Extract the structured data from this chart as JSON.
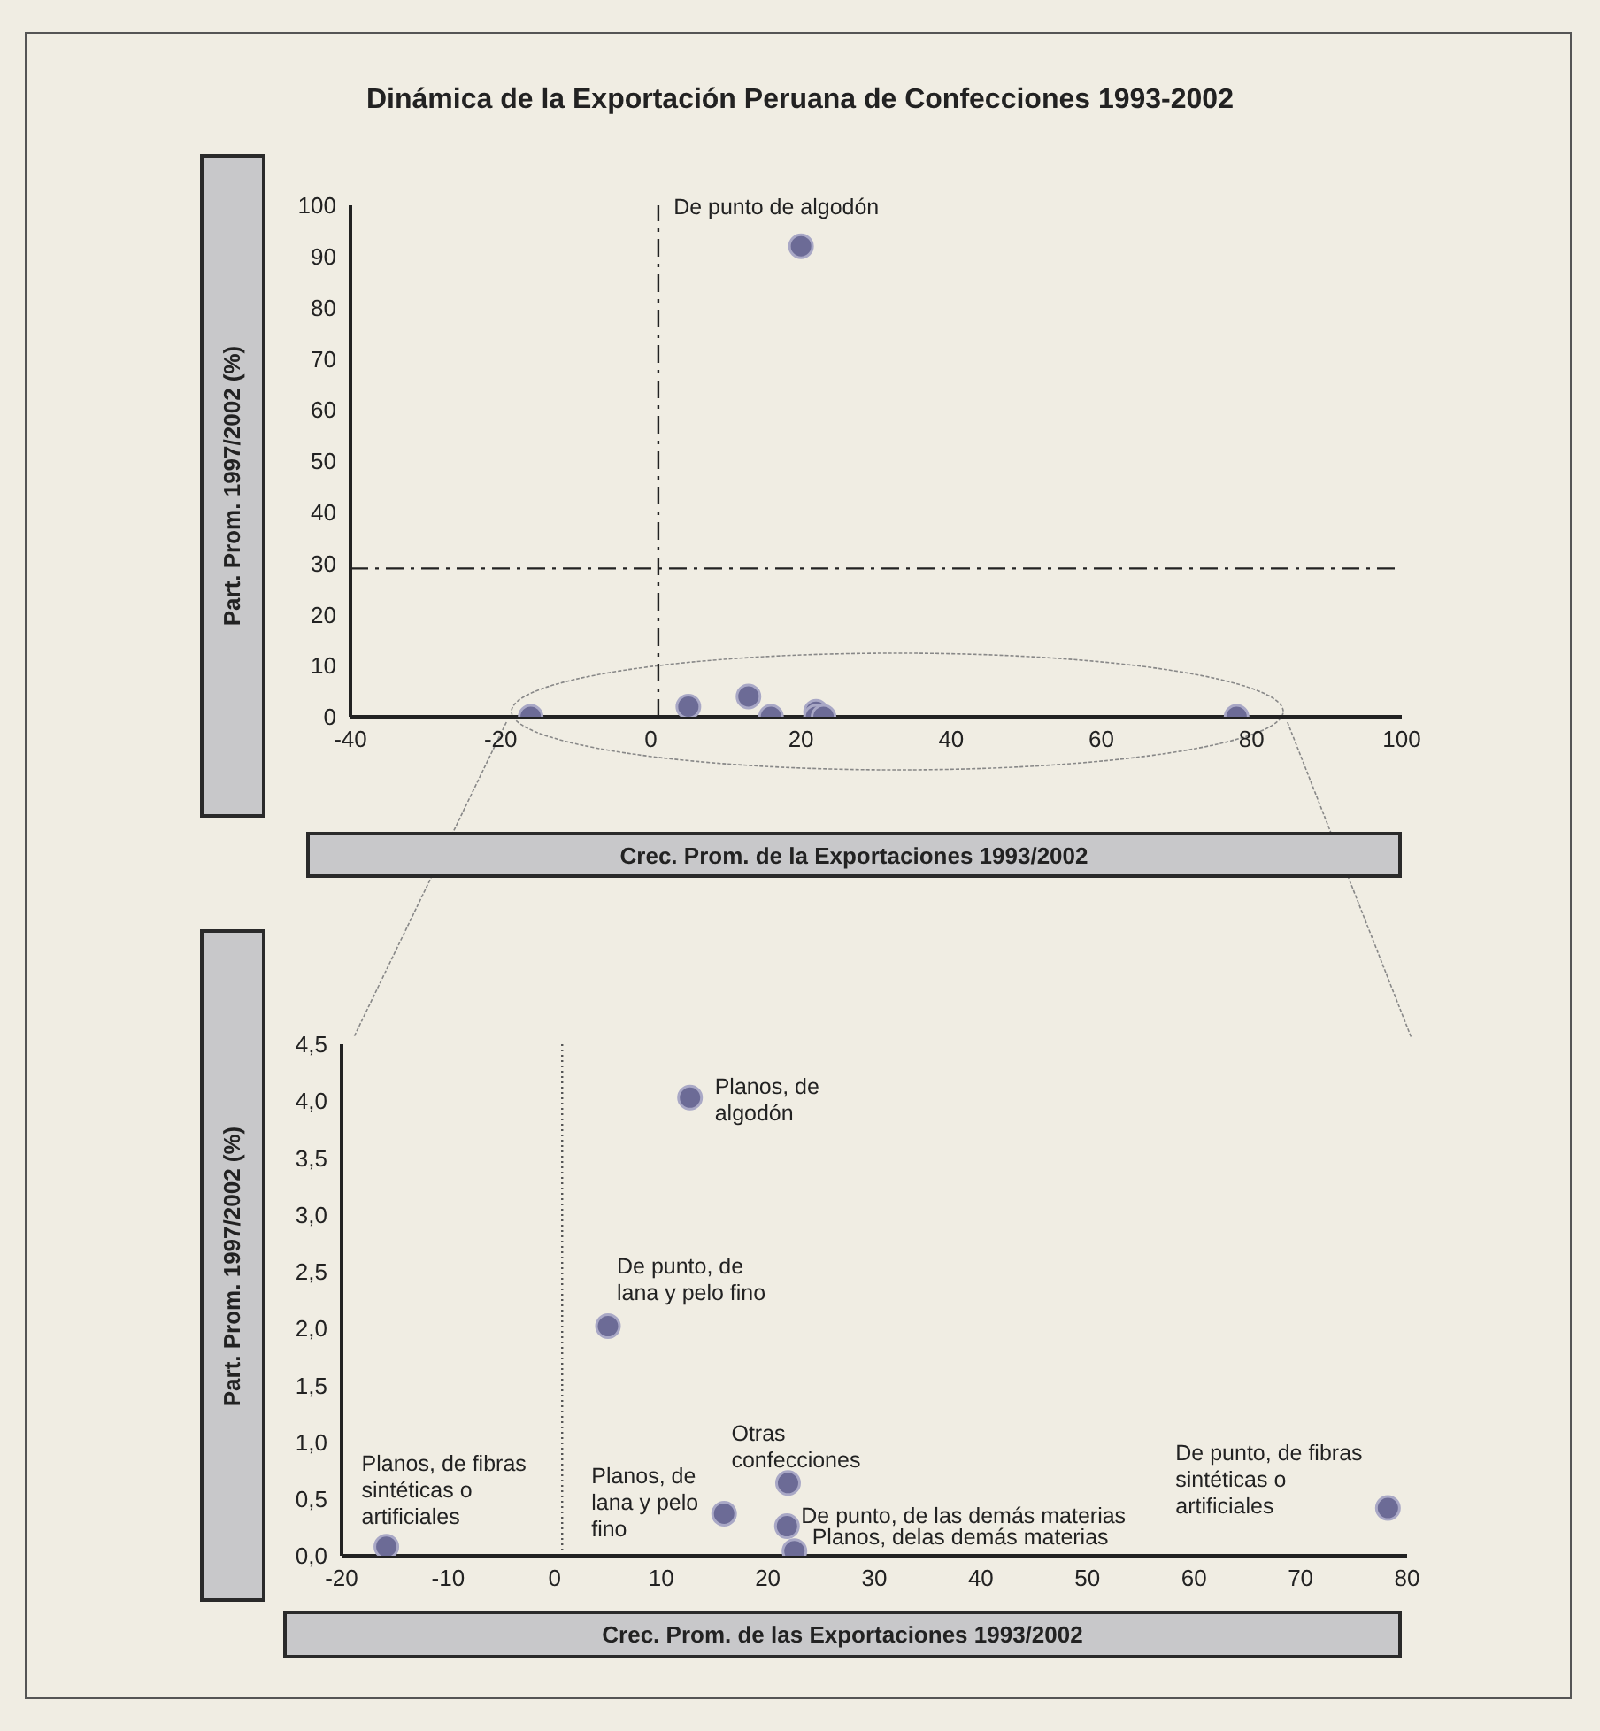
{
  "chart_data": [
    {
      "type": "scatter",
      "title": "Dinámica de la Exportación Peruana de Confecciones 1993-2002",
      "xlabel": "Crec. Prom. de la Exportaciones 1993/2002",
      "ylabel": "Part. Prom. 1997/2002 (%)",
      "x": [
        -16,
        5,
        13,
        16,
        22,
        22,
        23,
        78,
        20
      ],
      "values": [
        0,
        2,
        4,
        0,
        1,
        0,
        0,
        0,
        92
      ],
      "color": "#6c6b96",
      "marker": "circle",
      "grid": false,
      "xlim": [
        -40,
        100
      ],
      "xticks": [
        -40,
        -20,
        0,
        20,
        40,
        60,
        80,
        100
      ],
      "ylim": [
        0,
        100
      ],
      "yticks": [
        0,
        10,
        20,
        30,
        40,
        50,
        60,
        70,
        80,
        90,
        100
      ],
      "ref_lines": [
        {
          "axis": "x",
          "value": 1,
          "line_style": "dashed",
          "color": "#222222"
        },
        {
          "axis": "y",
          "value": 29,
          "line_style": "dashed",
          "color": "#222222"
        }
      ],
      "annotations": [
        {
          "text": "De punto de algodón",
          "x": 20,
          "y": 92
        }
      ]
    },
    {
      "type": "scatter",
      "xlabel": "Crec. Prom. de las Exportaciones 1993/2002",
      "ylabel": "Part. Prom. 1997/2002 (%)",
      "x": [
        -15.8,
        5,
        12.7,
        15.9,
        21.9,
        21.8,
        22.5,
        78.2
      ],
      "values": [
        0.08,
        2.02,
        4.03,
        0.37,
        0.64,
        0.26,
        0.04,
        0.42
      ],
      "color": "#6c6b96",
      "marker": "circle",
      "grid": false,
      "xlim": [
        -20,
        80
      ],
      "xticks": [
        -20,
        -10,
        0,
        10,
        20,
        30,
        40,
        50,
        60,
        70,
        80
      ],
      "ylim": [
        0,
        4.5
      ],
      "yticks": [
        {
          "value": 0,
          "label": "0,0"
        },
        {
          "value": 0.5,
          "label": "0,5"
        },
        {
          "value": 1,
          "label": "1,0"
        },
        {
          "value": 1.5,
          "label": "1,5"
        },
        {
          "value": 2,
          "label": "2,0"
        },
        {
          "value": 2.5,
          "label": "2,5"
        },
        {
          "value": 3,
          "label": "3,0"
        },
        {
          "value": 3.5,
          "label": "3,5"
        },
        {
          "value": 4,
          "label": "4,0"
        },
        {
          "value": 4.5,
          "label": "4,5"
        }
      ],
      "ref_lines": [
        {
          "axis": "x",
          "value": 0.7,
          "line_style": "dotted",
          "color": "#555555"
        }
      ],
      "annotations": [
        {
          "text": "Planos, de fibras sintéticas o artificiales",
          "x": -15.8,
          "y": 0.08
        },
        {
          "text": "De punto, de lana y pelo fino",
          "x": 5,
          "y": 2.02
        },
        {
          "text": "Planos, de algodón",
          "x": 12.7,
          "y": 4.03
        },
        {
          "text": "Planos, de lana y pelo fino",
          "x": 15.9,
          "y": 0.37
        },
        {
          "text": "Otras confecciones",
          "x": 21.9,
          "y": 0.64
        },
        {
          "text": "De punto, de las demás  materias",
          "x": 21.8,
          "y": 0.26
        },
        {
          "text": "Planos, delas demás materias",
          "x": 22.5,
          "y": 0.04
        },
        {
          "text": "De punto, de fibras sintéticas o artificiales",
          "x": 78.2,
          "y": 0.42
        }
      ]
    }
  ]
}
